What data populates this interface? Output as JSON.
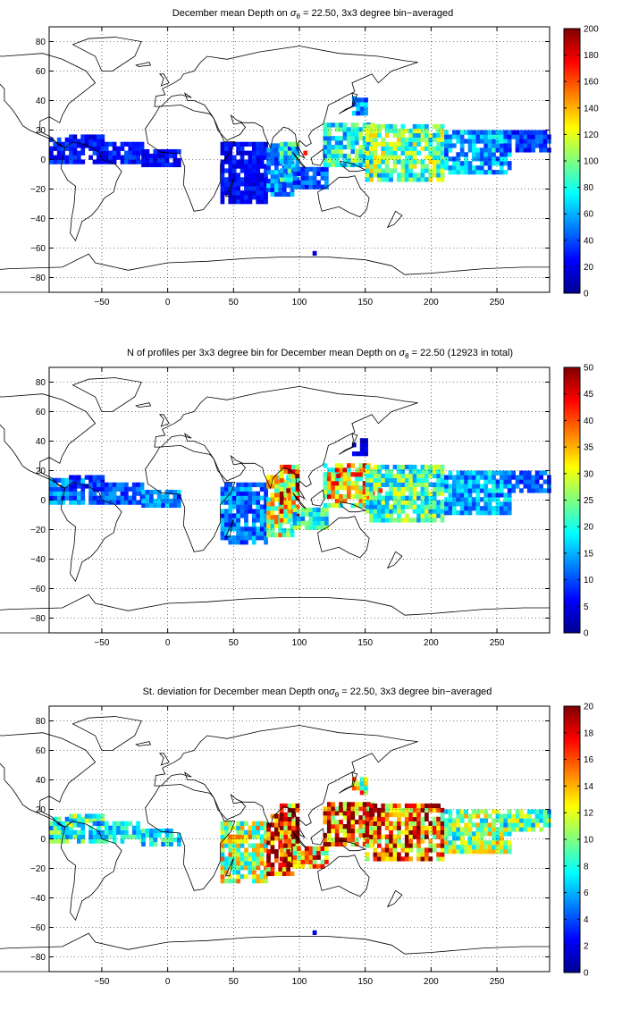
{
  "chart_data": [
    {
      "type": "heatmap",
      "title_parts": [
        "December mean Depth on ",
        "σ",
        "θ",
        " = 22.50, 3x3 degree bin−averaged"
      ],
      "xlim": [
        -90,
        290
      ],
      "ylim": [
        -90,
        90
      ],
      "xticks": [
        -50,
        0,
        50,
        100,
        150,
        200,
        250
      ],
      "yticks": [
        -80,
        -60,
        -40,
        -20,
        0,
        20,
        40,
        60,
        80
      ],
      "grid": true,
      "colorbar": {
        "min": 0,
        "max": 200,
        "ticks": [
          0,
          20,
          40,
          60,
          80,
          100,
          120,
          140,
          160,
          180,
          200
        ],
        "colormap": "jet"
      },
      "value_field": "depth",
      "regions": [
        {
          "x": [
            -90,
            -65
          ],
          "y": [
            -3,
            13
          ],
          "v": 30
        },
        {
          "x": [
            -75,
            -50
          ],
          "y": [
            8,
            17
          ],
          "v": 25
        },
        {
          "x": [
            -60,
            -20
          ],
          "y": [
            -3,
            10
          ],
          "v": 30
        },
        {
          "x": [
            -20,
            10
          ],
          "y": [
            -5,
            5
          ],
          "v": 25
        },
        {
          "x": [
            40,
            75
          ],
          "y": [
            -30,
            10
          ],
          "v": 25
        },
        {
          "x": [
            75,
            95
          ],
          "y": [
            -25,
            10
          ],
          "v": 50
        },
        {
          "x": [
            85,
            100
          ],
          "y": [
            -15,
            12
          ],
          "v": 75
        },
        {
          "x": [
            95,
            120
          ],
          "y": [
            -20,
            -5
          ],
          "v": 40
        },
        {
          "x": [
            118,
            155
          ],
          "y": [
            -5,
            25
          ],
          "v": 80
        },
        {
          "x": [
            150,
            210
          ],
          "y": [
            -15,
            22
          ],
          "v": 95
        },
        {
          "x": [
            210,
            260
          ],
          "y": [
            -10,
            20
          ],
          "v": 60
        },
        {
          "x": [
            255,
            290
          ],
          "y": [
            5,
            20
          ],
          "v": 35
        },
        {
          "x": [
            140,
            150
          ],
          "y": [
            30,
            42
          ],
          "v": 55
        }
      ],
      "sample_points": [
        {
          "x": 110,
          "y": -65,
          "v": 15
        },
        {
          "x": 103,
          "y": 3,
          "v": 170
        },
        {
          "x": 140,
          "y": 40,
          "v": 55
        }
      ]
    },
    {
      "type": "heatmap",
      "title_parts": [
        "N of profiles per 3x3 degree bin for December mean Depth on ",
        "σ",
        "θ",
        " = 22.50 (12923 in total)"
      ],
      "xlim": [
        -90,
        290
      ],
      "ylim": [
        -90,
        90
      ],
      "xticks": [
        -50,
        0,
        50,
        100,
        150,
        200,
        250
      ],
      "yticks": [
        -80,
        -60,
        -40,
        -20,
        0,
        20,
        40,
        60,
        80
      ],
      "grid": true,
      "colorbar": {
        "min": 0,
        "max": 50,
        "ticks": [
          0,
          5,
          10,
          15,
          20,
          25,
          30,
          35,
          40,
          45,
          50
        ],
        "colormap": "jet"
      },
      "value_field": "profile count",
      "regions": [
        {
          "x": [
            -90,
            -65
          ],
          "y": [
            -3,
            13
          ],
          "v": 12
        },
        {
          "x": [
            -75,
            -50
          ],
          "y": [
            8,
            17
          ],
          "v": 8
        },
        {
          "x": [
            -60,
            -20
          ],
          "y": [
            -3,
            10
          ],
          "v": 10
        },
        {
          "x": [
            -20,
            10
          ],
          "y": [
            -5,
            5
          ],
          "v": 12
        },
        {
          "x": [
            40,
            75
          ],
          "y": [
            -30,
            10
          ],
          "v": 12
        },
        {
          "x": [
            75,
            95
          ],
          "y": [
            -25,
            15
          ],
          "v": 28
        },
        {
          "x": [
            85,
            100
          ],
          "y": [
            -15,
            22
          ],
          "v": 35
        },
        {
          "x": [
            95,
            120
          ],
          "y": [
            -20,
            -5
          ],
          "v": 20
        },
        {
          "x": [
            118,
            155
          ],
          "y": [
            -5,
            25
          ],
          "v": 32
        },
        {
          "x": [
            150,
            210
          ],
          "y": [
            -15,
            22
          ],
          "v": 22
        },
        {
          "x": [
            210,
            260
          ],
          "y": [
            -10,
            20
          ],
          "v": 15
        },
        {
          "x": [
            255,
            290
          ],
          "y": [
            5,
            20
          ],
          "v": 10
        },
        {
          "x": [
            140,
            150
          ],
          "y": [
            30,
            42
          ],
          "v": 5
        }
      ],
      "sample_points": [
        {
          "x": 90,
          "y": 5,
          "v": 48
        },
        {
          "x": 128,
          "y": 15,
          "v": 45
        },
        {
          "x": 160,
          "y": 5,
          "v": 42
        }
      ]
    },
    {
      "type": "heatmap",
      "title_parts": [
        "St. deviation for December mean Depth on",
        "σ",
        "θ",
        " = 22.50, 3x3 degree bin−averaged"
      ],
      "xlim": [
        -90,
        290
      ],
      "ylim": [
        -90,
        90
      ],
      "xticks": [
        -50,
        0,
        50,
        100,
        150,
        200,
        250
      ],
      "yticks": [
        -80,
        -60,
        -40,
        -20,
        0,
        20,
        40,
        60,
        80
      ],
      "grid": true,
      "colorbar": {
        "min": 0,
        "max": 20,
        "ticks": [
          0,
          2,
          4,
          6,
          8,
          10,
          12,
          14,
          16,
          18,
          20
        ],
        "colormap": "jet"
      },
      "value_field": "standard deviation",
      "regions": [
        {
          "x": [
            -90,
            -65
          ],
          "y": [
            -3,
            13
          ],
          "v": 8
        },
        {
          "x": [
            -75,
            -50
          ],
          "y": [
            8,
            17
          ],
          "v": 9
        },
        {
          "x": [
            -60,
            -20
          ],
          "y": [
            -3,
            10
          ],
          "v": 7
        },
        {
          "x": [
            -20,
            10
          ],
          "y": [
            -5,
            5
          ],
          "v": 7
        },
        {
          "x": [
            40,
            75
          ],
          "y": [
            -30,
            10
          ],
          "v": 11
        },
        {
          "x": [
            75,
            95
          ],
          "y": [
            -25,
            15
          ],
          "v": 17
        },
        {
          "x": [
            85,
            100
          ],
          "y": [
            -15,
            22
          ],
          "v": 16
        },
        {
          "x": [
            95,
            120
          ],
          "y": [
            -20,
            -5
          ],
          "v": 14
        },
        {
          "x": [
            118,
            155
          ],
          "y": [
            -5,
            25
          ],
          "v": 17
        },
        {
          "x": [
            150,
            210
          ],
          "y": [
            -15,
            22
          ],
          "v": 16
        },
        {
          "x": [
            210,
            260
          ],
          "y": [
            -10,
            20
          ],
          "v": 10
        },
        {
          "x": [
            255,
            290
          ],
          "y": [
            5,
            20
          ],
          "v": 9
        },
        {
          "x": [
            140,
            150
          ],
          "y": [
            30,
            42
          ],
          "v": 12
        }
      ],
      "sample_points": [
        {
          "x": 90,
          "y": -10,
          "v": 19
        },
        {
          "x": 130,
          "y": 18,
          "v": 19
        },
        {
          "x": 110,
          "y": -65,
          "v": 2
        }
      ]
    }
  ]
}
